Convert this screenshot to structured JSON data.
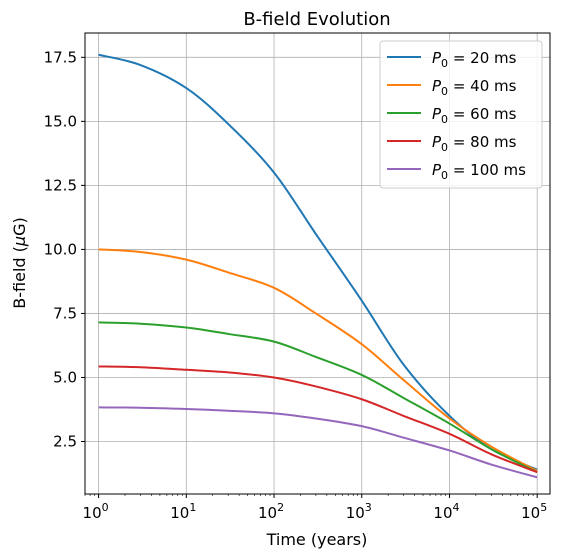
{
  "chart_data": {
    "type": "line",
    "title": "B-field Evolution",
    "xlabel": "Time (years)",
    "ylabel_text": "B-field (",
    "ylabel_mu": "μ",
    "ylabel_unit": "G)",
    "xscale": "log",
    "xlim": [
      0.7,
      140000
    ],
    "ylim": [
      0.45,
      18.45
    ],
    "grid": true,
    "legend_position": "top-right",
    "x_ticks": [
      {
        "base": "10",
        "exp": "0",
        "value": 1
      },
      {
        "base": "10",
        "exp": "1",
        "value": 10
      },
      {
        "base": "10",
        "exp": "2",
        "value": 100
      },
      {
        "base": "10",
        "exp": "3",
        "value": 1000
      },
      {
        "base": "10",
        "exp": "4",
        "value": 10000
      },
      {
        "base": "10",
        "exp": "5",
        "value": 100000
      }
    ],
    "y_ticks": [
      {
        "label": "2.5",
        "value": 2.5
      },
      {
        "label": "5.0",
        "value": 5.0
      },
      {
        "label": "7.5",
        "value": 7.5
      },
      {
        "label": "10.0",
        "value": 10.0
      },
      {
        "label": "12.5",
        "value": 12.5
      },
      {
        "label": "15.0",
        "value": 15.0
      },
      {
        "label": "17.5",
        "value": 17.5
      }
    ],
    "x": [
      1,
      3,
      10,
      30,
      100,
      300,
      1000,
      3000,
      10000,
      30000,
      100000
    ],
    "series": [
      {
        "name_var": "P",
        "name_sub": "0",
        "name_rest": " = 20 ms",
        "color": "#1f77b4",
        "values": [
          17.6,
          17.2,
          16.3,
          14.9,
          13.0,
          10.6,
          8.0,
          5.5,
          3.5,
          2.2,
          1.4
        ]
      },
      {
        "name_var": "P",
        "name_sub": "0",
        "name_rest": " = 40 ms",
        "color": "#ff7f0e",
        "values": [
          10.0,
          9.9,
          9.6,
          9.1,
          8.5,
          7.5,
          6.3,
          4.9,
          3.4,
          2.3,
          1.35
        ]
      },
      {
        "name_var": "P",
        "name_sub": "0",
        "name_rest": " = 60 ms",
        "color": "#2ca02c",
        "values": [
          7.15,
          7.1,
          6.95,
          6.7,
          6.4,
          5.8,
          5.1,
          4.2,
          3.2,
          2.2,
          1.3
        ]
      },
      {
        "name_var": "P",
        "name_sub": "0",
        "name_rest": " = 80 ms",
        "color": "#d62728",
        "values": [
          5.43,
          5.4,
          5.3,
          5.2,
          5.0,
          4.65,
          4.15,
          3.5,
          2.8,
          2.0,
          1.3
        ]
      },
      {
        "name_var": "P",
        "name_sub": "0",
        "name_rest": " = 100 ms",
        "color": "#9467bd",
        "values": [
          3.83,
          3.82,
          3.77,
          3.7,
          3.6,
          3.4,
          3.1,
          2.65,
          2.15,
          1.6,
          1.1
        ]
      }
    ]
  }
}
